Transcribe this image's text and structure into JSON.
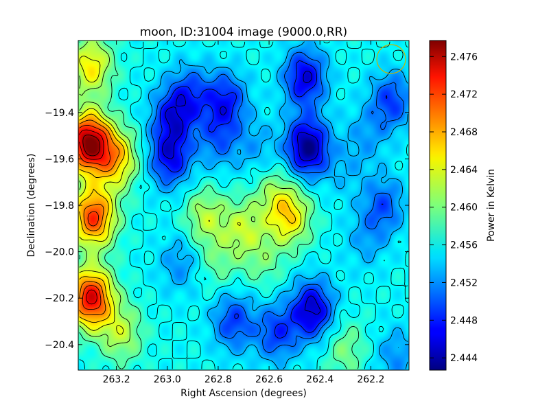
{
  "chart_data": {
    "type": "heatmap",
    "title": "moon, ID:31004 image (9000.0,RR)",
    "xlabel": "Right Ascension (degrees)",
    "ylabel": "Declination (degrees)",
    "xlim": [
      263.35,
      262.05
    ],
    "ylim": [
      -20.51,
      -19.09
    ],
    "x_ticks": [
      263.2,
      263.0,
      262.8,
      262.6,
      262.4,
      262.2
    ],
    "x_tick_labels": [
      "263.2",
      "263.0",
      "262.8",
      "262.6",
      "262.4",
      "262.2"
    ],
    "y_ticks": [
      -19.4,
      -19.6,
      -19.8,
      -20.0,
      -20.2,
      -20.4
    ],
    "y_tick_labels": [
      "−19.4",
      "−19.6",
      "−19.8",
      "−20.0",
      "−20.2",
      "−20.4"
    ],
    "colorbar": {
      "label": "Power in Kelvin",
      "range": [
        2.4427,
        2.4777
      ],
      "ticks": [
        2.444,
        2.448,
        2.452,
        2.456,
        2.46,
        2.464,
        2.468,
        2.472,
        2.476
      ],
      "tick_labels": [
        "2.444",
        "2.448",
        "2.452",
        "2.456",
        "2.460",
        "2.464",
        "2.468",
        "2.472",
        "2.476"
      ],
      "colormap": "jet"
    },
    "contours": "black contour lines overlay",
    "beam_marker": {
      "shape": "circle",
      "color": "#c8b400",
      "ra": 262.1,
      "dec": -19.22
    },
    "features": [
      {
        "ra": 263.31,
        "dec": -19.53,
        "value": 2.477
      },
      {
        "ra": 263.3,
        "dec": -20.2,
        "value": 2.474
      },
      {
        "ra": 263.29,
        "dec": -19.85,
        "value": 2.4715
      },
      {
        "ra": 263.3,
        "dec": -19.2,
        "value": 2.465
      },
      {
        "ra": 263.2,
        "dec": -19.6,
        "value": 2.466
      },
      {
        "ra": 263.18,
        "dec": -20.35,
        "value": 2.462
      },
      {
        "ra": 262.99,
        "dec": -19.6,
        "value": 2.447
      },
      {
        "ra": 262.98,
        "dec": -19.42,
        "value": 2.448
      },
      {
        "ra": 262.91,
        "dec": -19.32,
        "value": 2.45
      },
      {
        "ra": 262.77,
        "dec": -19.35,
        "value": 2.448
      },
      {
        "ra": 262.8,
        "dec": -19.52,
        "value": 2.451
      },
      {
        "ra": 262.65,
        "dec": -19.55,
        "value": 2.453
      },
      {
        "ra": 262.45,
        "dec": -19.55,
        "value": 2.443
      },
      {
        "ra": 262.46,
        "dec": -19.25,
        "value": 2.446
      },
      {
        "ra": 262.85,
        "dec": -19.85,
        "value": 2.462
      },
      {
        "ra": 262.7,
        "dec": -19.9,
        "value": 2.462
      },
      {
        "ra": 262.58,
        "dec": -19.75,
        "value": 2.46
      },
      {
        "ra": 262.52,
        "dec": -19.85,
        "value": 2.465
      },
      {
        "ra": 262.62,
        "dec": -20.05,
        "value": 2.459
      },
      {
        "ra": 262.43,
        "dec": -20.25,
        "value": 2.445
      },
      {
        "ra": 262.74,
        "dec": -20.3,
        "value": 2.449
      },
      {
        "ra": 262.57,
        "dec": -20.35,
        "value": 2.449
      },
      {
        "ra": 263.05,
        "dec": -20.2,
        "value": 2.456
      },
      {
        "ra": 262.22,
        "dec": -20.22,
        "value": 2.456
      },
      {
        "ra": 262.3,
        "dec": -20.42,
        "value": 2.46
      },
      {
        "ra": 262.22,
        "dec": -19.95,
        "value": 2.453
      },
      {
        "ra": 262.3,
        "dec": -19.65,
        "value": 2.454
      },
      {
        "ra": 262.22,
        "dec": -19.5,
        "value": 2.453
      },
      {
        "ra": 262.15,
        "dec": -19.8,
        "value": 2.45
      },
      {
        "ra": 262.12,
        "dec": -19.35,
        "value": 2.449
      },
      {
        "ra": 262.1,
        "dec": -20.45,
        "value": 2.452
      },
      {
        "ra": 262.95,
        "dec": -20.05,
        "value": 2.452
      },
      {
        "ra": 262.8,
        "dec": -20.05,
        "value": 2.459
      }
    ],
    "base_value": 2.456
  }
}
